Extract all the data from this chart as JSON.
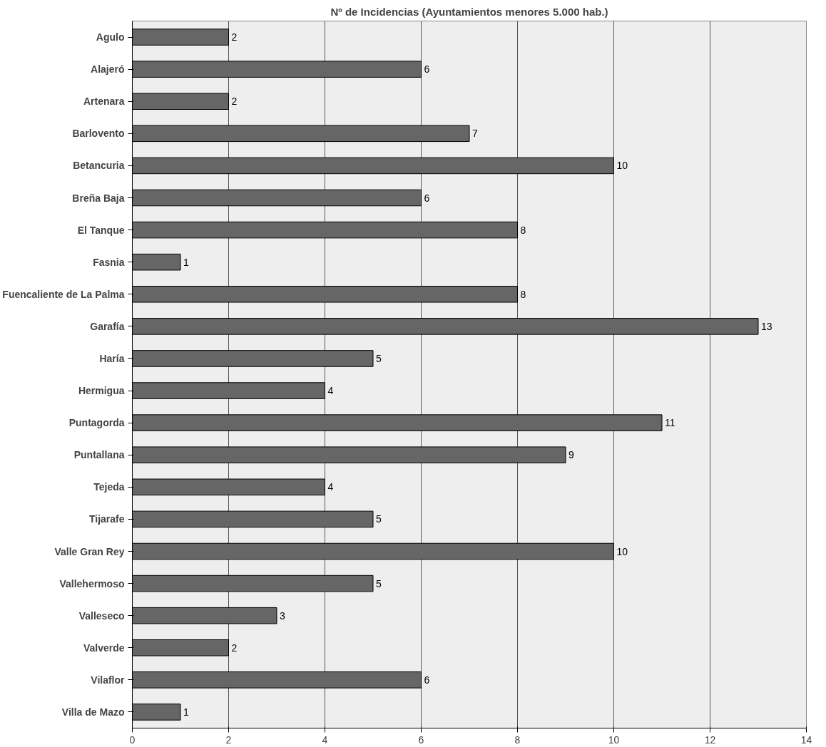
{
  "chart_data": {
    "type": "bar",
    "orientation": "horizontal",
    "title": "Nº de Incidencias (Ayuntamientos menores 5.000 hab.)",
    "categories": [
      "Agulo",
      "Alajeró",
      "Artenara",
      "Barlovento",
      "Betancuria",
      "Breña Baja",
      "El Tanque",
      "Fasnia",
      "Fuencaliente de La Palma",
      "Garafía",
      "Haría",
      "Hermigua",
      "Puntagorda",
      "Puntallana",
      "Tejeda",
      "Tijarafe",
      "Valle Gran Rey",
      "Vallehermoso",
      "Valleseco",
      "Valverde",
      "Vilaflor",
      "Villa de Mazo"
    ],
    "values": [
      2,
      6,
      2,
      7,
      10,
      6,
      8,
      1,
      8,
      13,
      5,
      4,
      11,
      9,
      4,
      5,
      10,
      5,
      3,
      2,
      6,
      1
    ],
    "color": "#666666",
    "xlim": [
      0,
      14
    ],
    "xticks": [
      0,
      2,
      4,
      6,
      8,
      10,
      12,
      14
    ],
    "grid": "x",
    "data_labels": true
  }
}
